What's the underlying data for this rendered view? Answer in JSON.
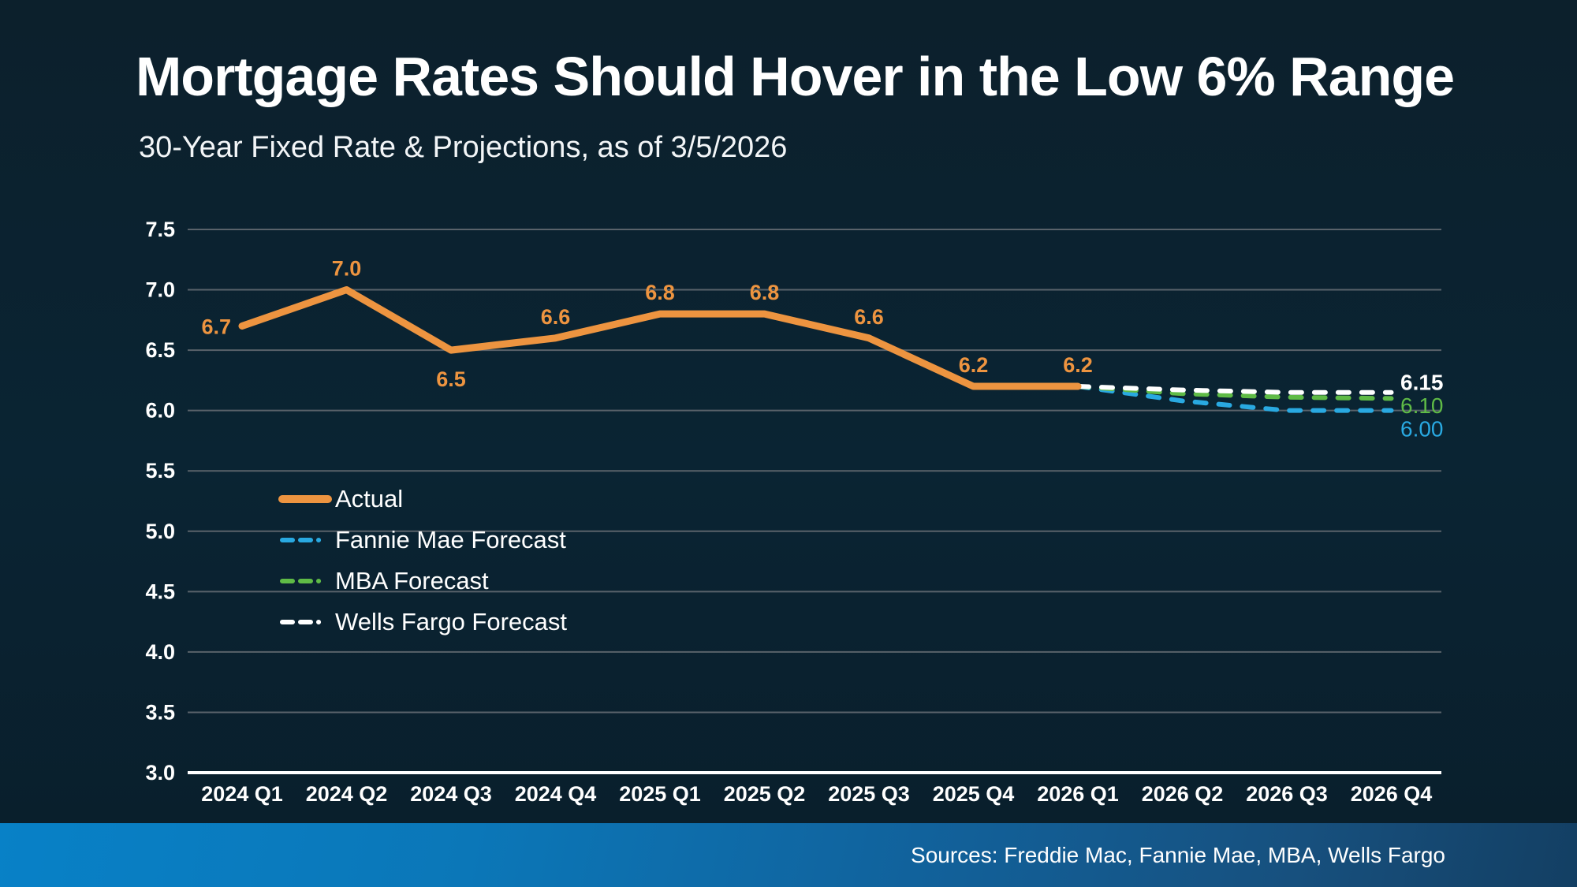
{
  "header": {
    "title": "Mortgage Rates Should Hover in the Low 6% Range",
    "subtitle": "30-Year Fixed Rate & Projections, as of 3/5/2026"
  },
  "footer": {
    "sources": "Sources: Freddie Mac, Fannie Mae, MBA, Wells Fargo"
  },
  "colors": {
    "background": "#0a2433",
    "accent_orange": "#ed9440",
    "accent_blue": "#29a9e1",
    "accent_green": "#5fbb46",
    "gridline": "#59626a",
    "axis_line": "#ffffff",
    "footer_blue_left": "#0881c7",
    "footer_blue_right": "#133f63"
  },
  "chart_data": {
    "type": "line",
    "title": "Mortgage Rates Should Hover in the Low 6% Range",
    "subtitle": "30-Year Fixed Rate & Projections, as of 3/5/2026",
    "categories": [
      "2024 Q1",
      "2024 Q2",
      "2024 Q3",
      "2024 Q4",
      "2025 Q1",
      "2025 Q2",
      "2025 Q3",
      "2025 Q4",
      "2026 Q1",
      "2026 Q2",
      "2026 Q3",
      "2026 Q4"
    ],
    "y_axis": {
      "min": 3.0,
      "max": 7.5,
      "step": 0.5
    },
    "grid": true,
    "legend_position": "inside-left",
    "series": [
      {
        "name": "Actual",
        "color": "#ed9440",
        "style": "solid",
        "start_index": 0,
        "values": [
          6.7,
          7.0,
          6.5,
          6.6,
          6.8,
          6.8,
          6.6,
          6.2,
          6.2
        ],
        "point_labels": [
          "6.7",
          "7.0",
          "6.5",
          "6.6",
          "6.8",
          "6.8",
          "6.6",
          "6.2",
          "6.2"
        ],
        "point_label_positions": [
          "left",
          "above",
          "below",
          "above",
          "above",
          "above",
          "above",
          "above",
          "above"
        ]
      },
      {
        "name": "Fannie Mae Forecast",
        "color": "#29a9e1",
        "style": "dashed",
        "start_index": 8,
        "values": [
          6.2,
          6.08,
          6.0,
          6.0
        ],
        "end_label": "6.00",
        "end_label_bold": false
      },
      {
        "name": "MBA Forecast",
        "color": "#5fbb46",
        "style": "dashed",
        "start_index": 8,
        "values": [
          6.2,
          6.14,
          6.11,
          6.1
        ],
        "end_label": "6.10",
        "end_label_bold": false
      },
      {
        "name": "Wells Fargo Forecast",
        "color": "#ffffff",
        "style": "dashed",
        "start_index": 8,
        "values": [
          6.2,
          6.17,
          6.15,
          6.15
        ],
        "end_label": "6.15",
        "end_label_bold": true
      }
    ]
  }
}
